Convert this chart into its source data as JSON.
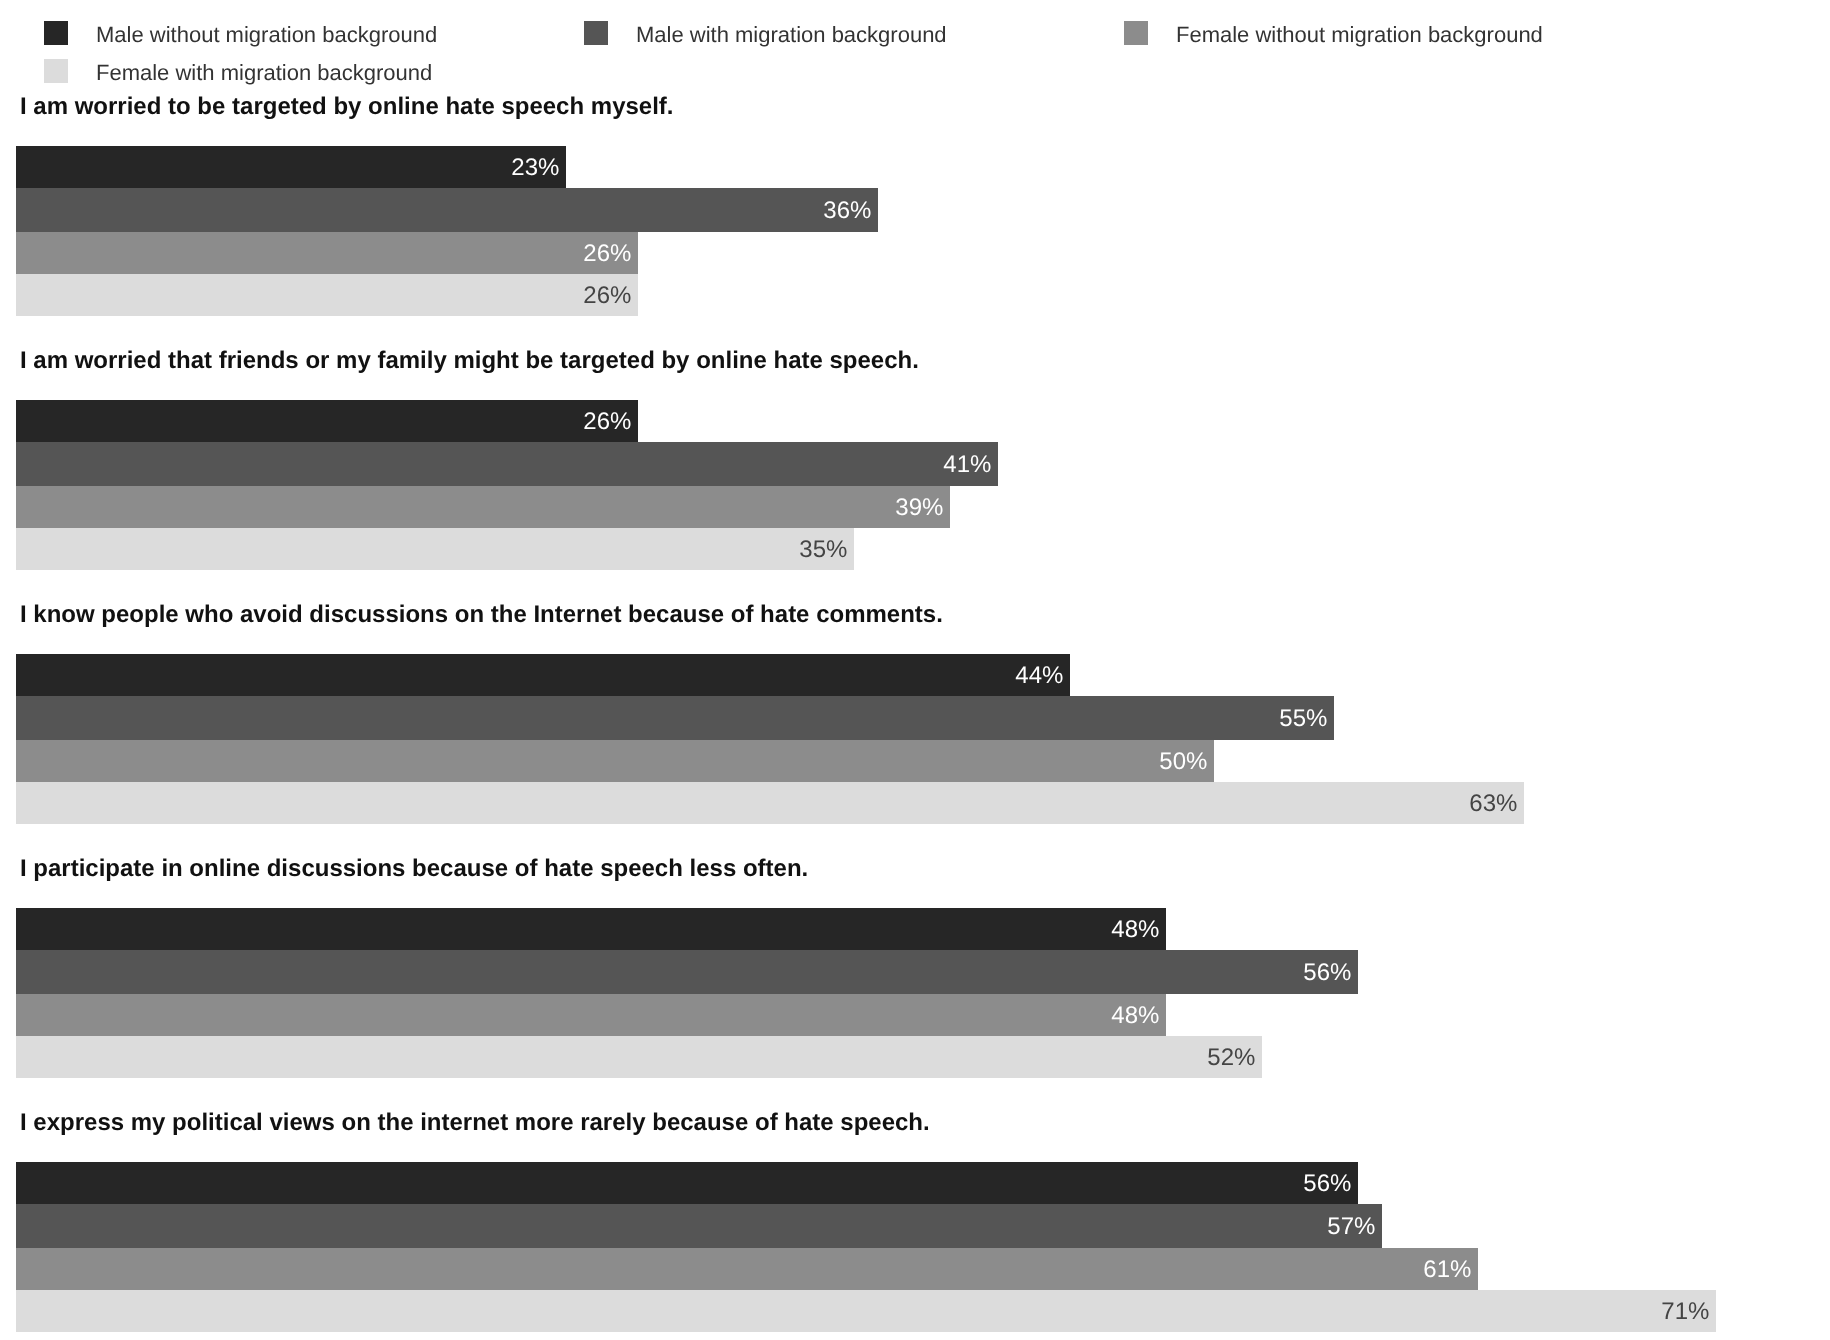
{
  "chart_data": {
    "type": "bar",
    "orientation": "horizontal",
    "categories": [
      "I am worried to be targeted by online hate speech myself.",
      "I am worried that friends or my family might be targeted by online hate speech.",
      "I know people who avoid discussions on the Internet because of hate comments.",
      "I participate in online discussions because of hate speech less often.",
      "I express my political views on the internet more rarely because of hate speech."
    ],
    "series": [
      {
        "name": "Male without migration background",
        "color": "#262626",
        "values": [
          23,
          26,
          44,
          48,
          56
        ],
        "value_labels": [
          "23%",
          "26%",
          "44%",
          "48%",
          "56%"
        ]
      },
      {
        "name": "Male with migration background",
        "color": "#555555",
        "values": [
          36,
          41,
          55,
          56,
          57
        ],
        "value_labels": [
          "36%",
          "41%",
          "55%",
          "56%",
          "57%"
        ]
      },
      {
        "name": "Female without migration background",
        "color": "#8c8c8c",
        "values": [
          26,
          39,
          50,
          48,
          61
        ],
        "value_labels": [
          "26%",
          "39%",
          "50%",
          "48%",
          "61%"
        ]
      },
      {
        "name": "Female with migration background",
        "color": "#dcdcdc",
        "values": [
          26,
          35,
          63,
          52,
          71
        ],
        "value_labels": [
          "26%",
          "35%",
          "63%",
          "52%",
          "71%"
        ]
      }
    ],
    "legend": "top",
    "tick_labels": false
  }
}
